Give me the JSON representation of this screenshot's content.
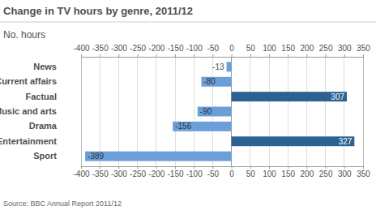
{
  "chart_data": {
    "type": "bar",
    "orientation": "horizontal",
    "title": "Change in TV hours by genre, 2011/12",
    "subtitle": "No. hours",
    "source": "Source: BBC Annual Report 2011/12",
    "categories": [
      "News",
      "Current affairs",
      "Factual",
      "Music and arts",
      "Drama",
      "Entertainment",
      "Sport"
    ],
    "values": [
      -13,
      -80,
      307,
      -90,
      -156,
      327,
      -389
    ],
    "colors": [
      "#6a9fd9",
      "#6a9fd9",
      "#2c6194",
      "#6a9fd9",
      "#6a9fd9",
      "#2c6194",
      "#6a9fd9"
    ],
    "xlim": [
      -400,
      350
    ],
    "xticks": [
      -400,
      -350,
      -300,
      -250,
      -200,
      -150,
      -100,
      -50,
      0,
      50,
      100,
      150,
      200,
      250,
      300,
      350
    ],
    "grid": true,
    "data_labels": true
  }
}
